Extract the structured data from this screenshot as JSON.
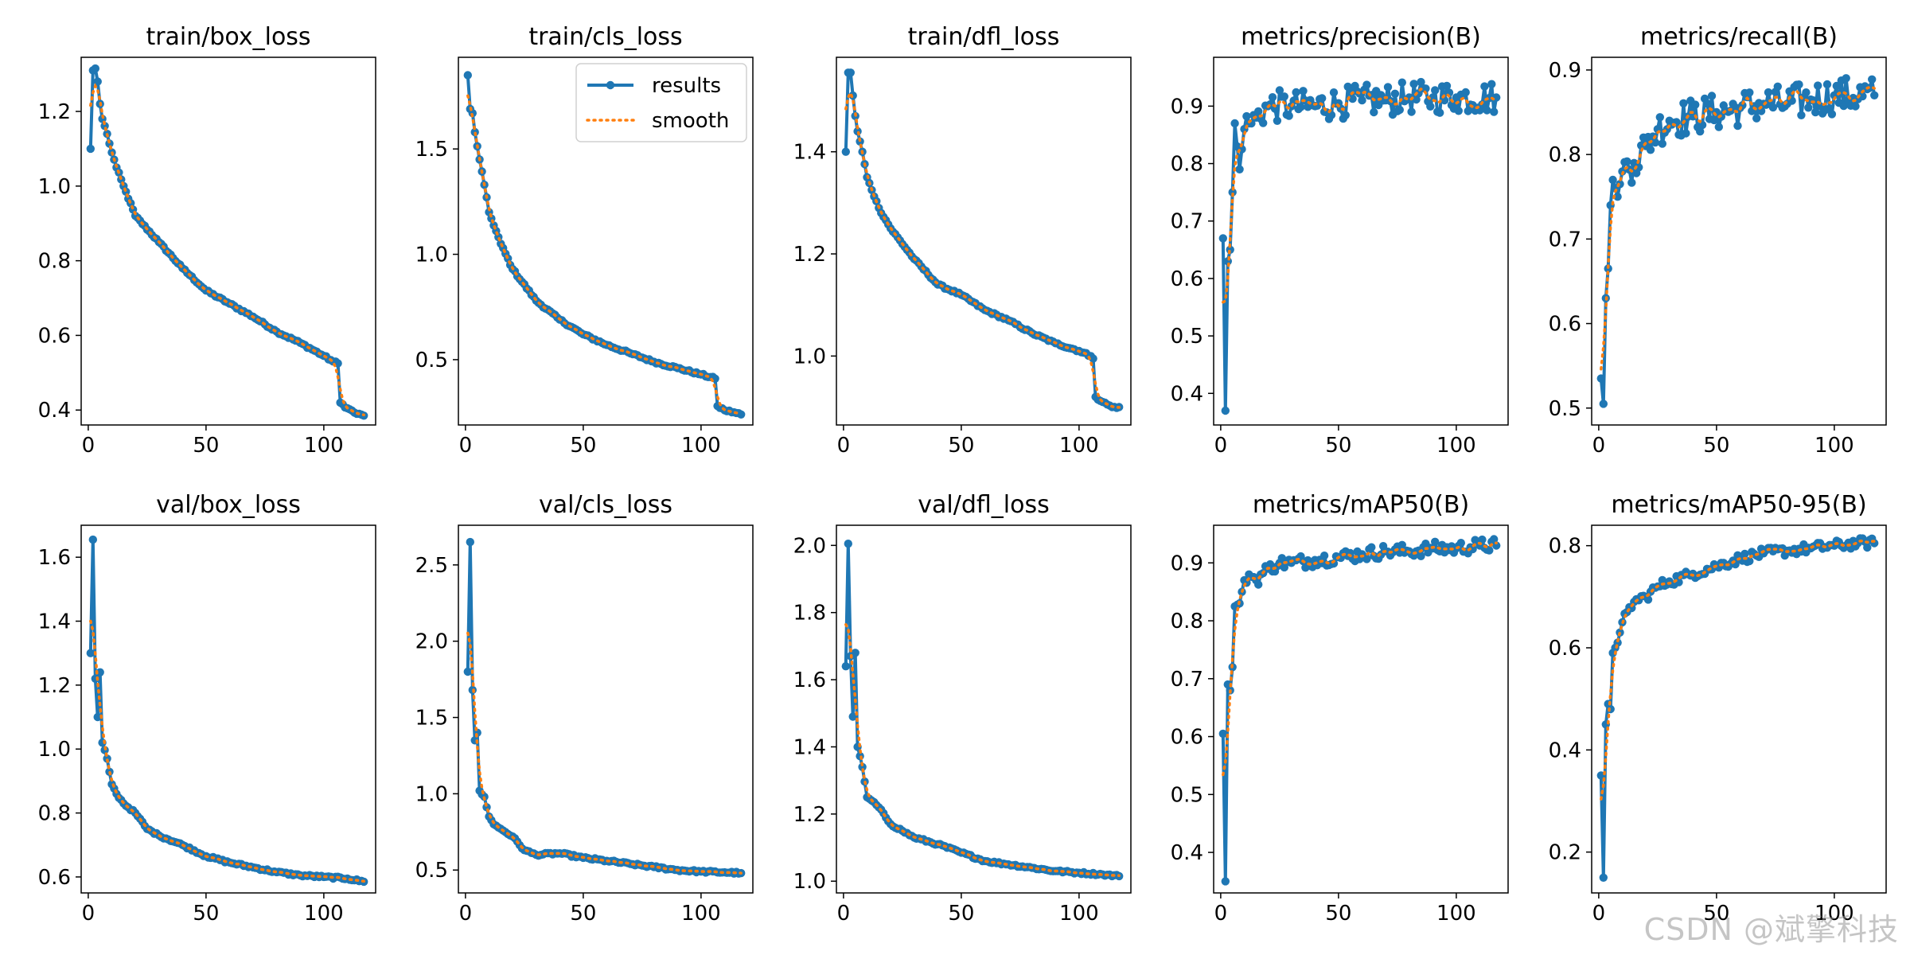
{
  "figure": {
    "watermark": "CSDN @斌擎科技",
    "series_colors": {
      "results": "#1f77b4",
      "smooth": "#ff7f0e"
    }
  },
  "chart_data": [
    {
      "type": "line",
      "title": "train/box_loss",
      "xlim": [
        -3,
        122
      ],
      "ylim": [
        0.36,
        1.345
      ],
      "xticks": [
        0,
        50,
        100
      ],
      "yticks": [
        0.4,
        0.6,
        0.8,
        1.0,
        1.2
      ],
      "ytick_labels": [
        "0.4",
        "0.6",
        "0.8",
        "1.0",
        "1.2"
      ],
      "legend": null,
      "anchors": [
        [
          1,
          1.1
        ],
        [
          2,
          1.31
        ],
        [
          3,
          1.315
        ],
        [
          4,
          1.28
        ],
        [
          5,
          1.22
        ],
        [
          6,
          1.18
        ],
        [
          8,
          1.14
        ],
        [
          10,
          1.09
        ],
        [
          12,
          1.05
        ],
        [
          15,
          1.0
        ],
        [
          20,
          0.92
        ],
        [
          30,
          0.85
        ],
        [
          40,
          0.78
        ],
        [
          50,
          0.72
        ],
        [
          60,
          0.685
        ],
        [
          70,
          0.65
        ],
        [
          80,
          0.61
        ],
        [
          90,
          0.58
        ],
        [
          100,
          0.545
        ],
        [
          104,
          0.53
        ],
        [
          106,
          0.525
        ],
        [
          107,
          0.42
        ],
        [
          110,
          0.405
        ],
        [
          114,
          0.39
        ],
        [
          117,
          0.385
        ]
      ]
    },
    {
      "type": "line",
      "title": "train/cls_loss",
      "xlim": [
        -3,
        122
      ],
      "ylim": [
        0.19,
        1.935
      ],
      "xticks": [
        0,
        50,
        100
      ],
      "yticks": [
        0.5,
        1.0,
        1.5
      ],
      "ytick_labels": [
        "0.5",
        "1.0",
        "1.5"
      ],
      "legend": {
        "position": "top-right",
        "entries": [
          "results",
          "smooth"
        ]
      },
      "anchors": [
        [
          1,
          1.85
        ],
        [
          2,
          1.69
        ],
        [
          3,
          1.67
        ],
        [
          4,
          1.58
        ],
        [
          6,
          1.45
        ],
        [
          8,
          1.33
        ],
        [
          10,
          1.2
        ],
        [
          15,
          1.05
        ],
        [
          20,
          0.93
        ],
        [
          30,
          0.78
        ],
        [
          40,
          0.69
        ],
        [
          50,
          0.62
        ],
        [
          60,
          0.57
        ],
        [
          70,
          0.53
        ],
        [
          80,
          0.49
        ],
        [
          90,
          0.46
        ],
        [
          100,
          0.43
        ],
        [
          106,
          0.41
        ],
        [
          107,
          0.28
        ],
        [
          110,
          0.26
        ],
        [
          114,
          0.25
        ],
        [
          117,
          0.24
        ]
      ]
    },
    {
      "type": "line",
      "title": "train/dfl_loss",
      "xlim": [
        -3,
        122
      ],
      "ylim": [
        0.865,
        1.585
      ],
      "xticks": [
        0,
        50,
        100
      ],
      "yticks": [
        1.0,
        1.2,
        1.4
      ],
      "ytick_labels": [
        "1.0",
        "1.2",
        "1.4"
      ],
      "legend": null,
      "anchors": [
        [
          1,
          1.4
        ],
        [
          2,
          1.555
        ],
        [
          3,
          1.555
        ],
        [
          4,
          1.51
        ],
        [
          5,
          1.47
        ],
        [
          6,
          1.44
        ],
        [
          8,
          1.4
        ],
        [
          10,
          1.35
        ],
        [
          15,
          1.29
        ],
        [
          20,
          1.25
        ],
        [
          30,
          1.19
        ],
        [
          40,
          1.14
        ],
        [
          50,
          1.12
        ],
        [
          60,
          1.09
        ],
        [
          70,
          1.07
        ],
        [
          80,
          1.045
        ],
        [
          90,
          1.025
        ],
        [
          100,
          1.01
        ],
        [
          105,
          1.0
        ],
        [
          106,
          0.995
        ],
        [
          107,
          0.92
        ],
        [
          110,
          0.91
        ],
        [
          114,
          0.9
        ],
        [
          117,
          0.9
        ]
      ]
    },
    {
      "type": "line",
      "title": "metrics/precision(B)",
      "xlim": [
        -3,
        122
      ],
      "ylim": [
        0.345,
        0.985
      ],
      "xticks": [
        0,
        50,
        100
      ],
      "yticks": [
        0.4,
        0.5,
        0.6,
        0.7,
        0.8,
        0.9
      ],
      "ytick_labels": [
        "0.4",
        "0.5",
        "0.6",
        "0.7",
        "0.8",
        "0.9"
      ],
      "legend": null,
      "noise": 0.028,
      "anchors": [
        [
          1,
          0.67
        ],
        [
          2,
          0.37
        ],
        [
          3,
          0.63
        ],
        [
          4,
          0.65
        ],
        [
          5,
          0.75
        ],
        [
          6,
          0.87
        ],
        [
          8,
          0.79
        ],
        [
          10,
          0.86
        ],
        [
          12,
          0.87
        ],
        [
          15,
          0.88
        ],
        [
          20,
          0.9
        ],
        [
          30,
          0.9
        ],
        [
          40,
          0.9
        ],
        [
          50,
          0.905
        ],
        [
          60,
          0.91
        ],
        [
          70,
          0.91
        ],
        [
          80,
          0.915
        ],
        [
          90,
          0.915
        ],
        [
          100,
          0.915
        ],
        [
          117,
          0.915
        ]
      ]
    },
    {
      "type": "line",
      "title": "metrics/recall(B)",
      "xlim": [
        -3,
        122
      ],
      "ylim": [
        0.48,
        0.915
      ],
      "xticks": [
        0,
        50,
        100
      ],
      "yticks": [
        0.5,
        0.6,
        0.7,
        0.8,
        0.9
      ],
      "ytick_labels": [
        "0.5",
        "0.6",
        "0.7",
        "0.8",
        "0.9"
      ],
      "legend": null,
      "noise": 0.022,
      "anchors": [
        [
          1,
          0.535
        ],
        [
          2,
          0.505
        ],
        [
          3,
          0.63
        ],
        [
          4,
          0.665
        ],
        [
          5,
          0.74
        ],
        [
          6,
          0.77
        ],
        [
          8,
          0.75
        ],
        [
          10,
          0.78
        ],
        [
          15,
          0.79
        ],
        [
          20,
          0.81
        ],
        [
          25,
          0.83
        ],
        [
          30,
          0.84
        ],
        [
          40,
          0.845
        ],
        [
          50,
          0.85
        ],
        [
          60,
          0.855
        ],
        [
          70,
          0.86
        ],
        [
          80,
          0.86
        ],
        [
          90,
          0.865
        ],
        [
          100,
          0.87
        ],
        [
          117,
          0.87
        ]
      ]
    },
    {
      "type": "line",
      "title": "val/box_loss",
      "xlim": [
        -3,
        122
      ],
      "ylim": [
        0.55,
        1.7
      ],
      "xticks": [
        0,
        50,
        100
      ],
      "yticks": [
        0.6,
        0.8,
        1.0,
        1.2,
        1.4,
        1.6
      ],
      "ytick_labels": [
        "0.6",
        "0.8",
        "1.0",
        "1.2",
        "1.4",
        "1.6"
      ],
      "legend": null,
      "anchors": [
        [
          1,
          1.3
        ],
        [
          2,
          1.655
        ],
        [
          3,
          1.22
        ],
        [
          4,
          1.1
        ],
        [
          5,
          1.24
        ],
        [
          6,
          1.02
        ],
        [
          8,
          0.97
        ],
        [
          10,
          0.89
        ],
        [
          12,
          0.86
        ],
        [
          15,
          0.83
        ],
        [
          20,
          0.8
        ],
        [
          25,
          0.75
        ],
        [
          30,
          0.73
        ],
        [
          40,
          0.7
        ],
        [
          50,
          0.665
        ],
        [
          60,
          0.645
        ],
        [
          70,
          0.63
        ],
        [
          80,
          0.615
        ],
        [
          90,
          0.605
        ],
        [
          100,
          0.6
        ],
        [
          110,
          0.595
        ],
        [
          117,
          0.585
        ]
      ]
    },
    {
      "type": "line",
      "title": "val/cls_loss",
      "xlim": [
        -3,
        122
      ],
      "ylim": [
        0.35,
        2.76
      ],
      "xticks": [
        0,
        50,
        100
      ],
      "yticks": [
        0.5,
        1.0,
        1.5,
        2.0,
        2.5
      ],
      "ytick_labels": [
        "0.5",
        "1.0",
        "1.5",
        "2.0",
        "2.5"
      ],
      "legend": null,
      "anchors": [
        [
          1,
          1.8
        ],
        [
          2,
          2.65
        ],
        [
          3,
          1.68
        ],
        [
          4,
          1.35
        ],
        [
          5,
          1.4
        ],
        [
          6,
          1.02
        ],
        [
          8,
          0.98
        ],
        [
          10,
          0.85
        ],
        [
          12,
          0.8
        ],
        [
          15,
          0.77
        ],
        [
          20,
          0.72
        ],
        [
          25,
          0.63
        ],
        [
          30,
          0.6
        ],
        [
          40,
          0.61
        ],
        [
          50,
          0.58
        ],
        [
          60,
          0.56
        ],
        [
          70,
          0.54
        ],
        [
          80,
          0.52
        ],
        [
          90,
          0.5
        ],
        [
          100,
          0.49
        ],
        [
          110,
          0.485
        ],
        [
          117,
          0.48
        ]
      ]
    },
    {
      "type": "line",
      "title": "val/dfl_loss",
      "xlim": [
        -3,
        122
      ],
      "ylim": [
        0.965,
        2.06
      ],
      "xticks": [
        0,
        50,
        100
      ],
      "yticks": [
        1.0,
        1.2,
        1.4,
        1.6,
        1.8,
        2.0
      ],
      "ytick_labels": [
        "1.0",
        "1.2",
        "1.4",
        "1.6",
        "1.8",
        "2.0"
      ],
      "legend": null,
      "anchors": [
        [
          1,
          1.64
        ],
        [
          2,
          2.005
        ],
        [
          3,
          1.67
        ],
        [
          4,
          1.49
        ],
        [
          5,
          1.68
        ],
        [
          6,
          1.4
        ],
        [
          8,
          1.34
        ],
        [
          10,
          1.25
        ],
        [
          12,
          1.24
        ],
        [
          15,
          1.22
        ],
        [
          20,
          1.17
        ],
        [
          25,
          1.15
        ],
        [
          30,
          1.13
        ],
        [
          40,
          1.11
        ],
        [
          50,
          1.085
        ],
        [
          60,
          1.06
        ],
        [
          70,
          1.05
        ],
        [
          80,
          1.04
        ],
        [
          90,
          1.03
        ],
        [
          100,
          1.025
        ],
        [
          110,
          1.02
        ],
        [
          117,
          1.015
        ]
      ]
    },
    {
      "type": "line",
      "title": "metrics/mAP50(B)",
      "xlim": [
        -3,
        122
      ],
      "ylim": [
        0.33,
        0.965
      ],
      "xticks": [
        0,
        50,
        100
      ],
      "yticks": [
        0.4,
        0.5,
        0.6,
        0.7,
        0.8,
        0.9
      ],
      "ytick_labels": [
        "0.4",
        "0.5",
        "0.6",
        "0.7",
        "0.8",
        "0.9"
      ],
      "legend": null,
      "noise": 0.012,
      "anchors": [
        [
          1,
          0.605
        ],
        [
          2,
          0.35
        ],
        [
          3,
          0.69
        ],
        [
          4,
          0.68
        ],
        [
          5,
          0.72
        ],
        [
          6,
          0.825
        ],
        [
          8,
          0.83
        ],
        [
          10,
          0.87
        ],
        [
          12,
          0.88
        ],
        [
          15,
          0.87
        ],
        [
          20,
          0.89
        ],
        [
          25,
          0.9
        ],
        [
          30,
          0.9
        ],
        [
          40,
          0.905
        ],
        [
          50,
          0.91
        ],
        [
          60,
          0.915
        ],
        [
          70,
          0.92
        ],
        [
          80,
          0.92
        ],
        [
          90,
          0.925
        ],
        [
          100,
          0.925
        ],
        [
          110,
          0.93
        ],
        [
          117,
          0.93
        ]
      ]
    },
    {
      "type": "line",
      "title": "metrics/mAP50-95(B)",
      "xlim": [
        -3,
        122
      ],
      "ylim": [
        0.12,
        0.84
      ],
      "xticks": [
        0,
        50,
        100
      ],
      "yticks": [
        0.2,
        0.4,
        0.6,
        0.8
      ],
      "ytick_labels": [
        "0.2",
        "0.4",
        "0.6",
        "0.8"
      ],
      "legend": null,
      "noise": 0.01,
      "anchors": [
        [
          1,
          0.35
        ],
        [
          2,
          0.15
        ],
        [
          3,
          0.45
        ],
        [
          4,
          0.49
        ],
        [
          5,
          0.48
        ],
        [
          6,
          0.59
        ],
        [
          8,
          0.61
        ],
        [
          10,
          0.65
        ],
        [
          12,
          0.67
        ],
        [
          15,
          0.69
        ],
        [
          20,
          0.7
        ],
        [
          25,
          0.72
        ],
        [
          30,
          0.73
        ],
        [
          40,
          0.745
        ],
        [
          50,
          0.76
        ],
        [
          60,
          0.775
        ],
        [
          70,
          0.785
        ],
        [
          80,
          0.79
        ],
        [
          90,
          0.795
        ],
        [
          100,
          0.8
        ],
        [
          110,
          0.805
        ],
        [
          117,
          0.805
        ]
      ]
    }
  ]
}
